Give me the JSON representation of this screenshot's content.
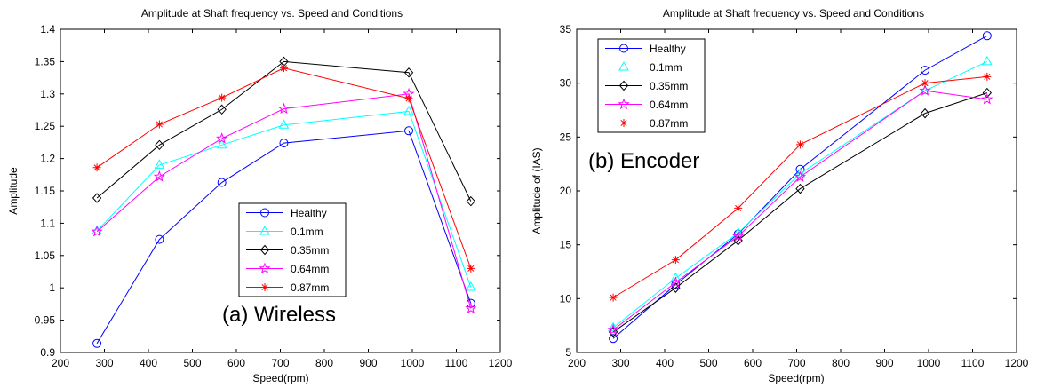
{
  "chart_data": [
    {
      "type": "line",
      "title": "Amplitude at Shaft frequency vs. Speed and Conditions",
      "xlabel": "Speed(rpm)",
      "ylabel": "Amplitude",
      "annotation": "(a) Wireless",
      "xlim": [
        200,
        1200
      ],
      "ylim": [
        0.9,
        1.4
      ],
      "xticks": [
        "200",
        "300",
        "400",
        "500",
        "600",
        "700",
        "800",
        "900",
        "1000",
        "1100",
        "1200"
      ],
      "yticks": [
        "0.9",
        "0.95",
        "1",
        "1.05",
        "1.1",
        "1.15",
        "1.2",
        "1.25",
        "1.3",
        "1.35",
        "1.4"
      ],
      "x": [
        283,
        425,
        567,
        708,
        992,
        1133
      ],
      "legend_position": "center-right",
      "grid": false,
      "series": [
        {
          "name": "Healthy",
          "color": "#0000ff",
          "marker": "circle",
          "values": [
            0.914,
            1.075,
            1.163,
            1.224,
            1.243,
            0.976
          ]
        },
        {
          "name": "0.1mm",
          "color": "#00ffff",
          "marker": "triangle",
          "values": [
            1.088,
            1.19,
            1.221,
            1.252,
            1.273,
            1.001
          ]
        },
        {
          "name": "0.35mm",
          "color": "#000000",
          "marker": "diamond",
          "values": [
            1.139,
            1.221,
            1.276,
            1.35,
            1.333,
            1.134
          ]
        },
        {
          "name": "0.64mm",
          "color": "#ff00ff",
          "marker": "pentagram",
          "values": [
            1.087,
            1.172,
            1.231,
            1.277,
            1.3,
            0.968
          ]
        },
        {
          "name": "0.87mm",
          "color": "#ff0000",
          "marker": "asterisk",
          "values": [
            1.186,
            1.253,
            1.294,
            1.34,
            1.293,
            1.03
          ]
        }
      ]
    },
    {
      "type": "line",
      "title": "Amplitude at Shaft frequency vs. Speed and Conditions",
      "xlabel": "Speed(rpm)",
      "ylabel": "Amplitude of (IAS)",
      "annotation": "(b) Encoder",
      "xlim": [
        200,
        1200
      ],
      "ylim": [
        5,
        35
      ],
      "xticks": [
        "200",
        "300",
        "400",
        "500",
        "600",
        "700",
        "800",
        "900",
        "1000",
        "1100",
        "1200"
      ],
      "yticks": [
        "5",
        "10",
        "15",
        "20",
        "25",
        "30",
        "35"
      ],
      "x": [
        283,
        425,
        567,
        708,
        992,
        1133
      ],
      "legend_position": "top-left",
      "grid": false,
      "series": [
        {
          "name": "Healthy",
          "color": "#0000ff",
          "marker": "circle",
          "values": [
            6.3,
            11.3,
            16.0,
            22.0,
            31.2,
            34.4
          ]
        },
        {
          "name": "0.1mm",
          "color": "#00ffff",
          "marker": "triangle",
          "values": [
            7.3,
            11.9,
            16.1,
            21.6,
            29.3,
            32.0
          ]
        },
        {
          "name": "0.35mm",
          "color": "#000000",
          "marker": "diamond",
          "values": [
            6.9,
            11.0,
            15.4,
            20.2,
            27.2,
            29.1
          ]
        },
        {
          "name": "0.64mm",
          "color": "#ff00ff",
          "marker": "pentagram",
          "values": [
            7.1,
            11.5,
            15.8,
            21.3,
            29.3,
            28.5
          ]
        },
        {
          "name": "0.87mm",
          "color": "#ff0000",
          "marker": "asterisk",
          "values": [
            10.1,
            13.6,
            18.4,
            24.3,
            30.0,
            30.6
          ]
        }
      ]
    }
  ]
}
